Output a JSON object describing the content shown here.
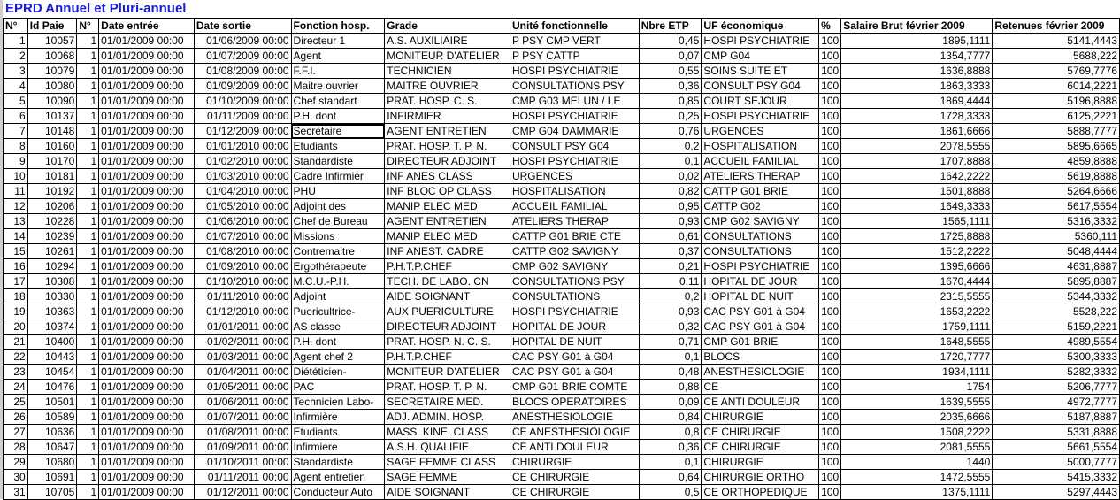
{
  "title": "EPRD Annuel et Pluri-annuel",
  "selected_cell": {
    "row": 7,
    "column": "Fonction hosp."
  },
  "columns": [
    "N°",
    "Id Paie",
    "N°",
    "Date entrée",
    "Date sortie",
    "Fonction hosp.",
    "Grade",
    "Unité fonctionnelle",
    "Nbre ETP",
    "UF économique",
    "%",
    "Salaire Brut février 2009",
    "Retenues février 2009"
  ],
  "rows": [
    [
      "1",
      "10057",
      "1",
      "01/01/2009 00:00",
      "01/06/2009 00:00",
      "Directeur 1",
      "A.S. AUXILIAIRE",
      "P PSY CMP VERT",
      "0,45",
      "HOSPI PSYCHIATRIE",
      "100",
      "1895,1111",
      "5141,4443"
    ],
    [
      "2",
      "10068",
      "1",
      "01/01/2009 00:00",
      "01/07/2009 00:00",
      "Agent",
      "MONITEUR D'ATELIER",
      "P PSY CATTP",
      "0,07",
      "CMP G04",
      "100",
      "1354,7777",
      "5688,222"
    ],
    [
      "3",
      "10079",
      "1",
      "01/01/2009 00:00",
      "01/08/2009 00:00",
      "F.F.I.",
      "TECHNICIEN",
      "HOSPI PSYCHIATRIE",
      "0,55",
      "SOINS SUITE ET",
      "100",
      "1636,8888",
      "5769,7776"
    ],
    [
      "4",
      "10080",
      "1",
      "01/01/2009 00:00",
      "01/09/2009 00:00",
      "Maitre ouvrier",
      "MAITRE OUVRIER",
      "CONSULTATIONS PSY",
      "0,36",
      "CONSULT PSY G04",
      "100",
      "1863,3333",
      "6014,2221"
    ],
    [
      "5",
      "10090",
      "1",
      "01/01/2009 00:00",
      "01/10/2009 00:00",
      "Chef standart",
      "PRAT. HOSP. C. S.",
      "CMP G03 MELUN / LE",
      "0,85",
      "COURT SEJOUR",
      "100",
      "1869,4444",
      "5196,8888"
    ],
    [
      "6",
      "10137",
      "1",
      "01/01/2009 00:00",
      "01/11/2009 00:00",
      "P.H. dont",
      "INFIRMIER",
      "HOSPI PSYCHIATRIE",
      "0,25",
      "HOSPI PSYCHIATRIE",
      "100",
      "1728,3333",
      "6125,2221"
    ],
    [
      "7",
      "10148",
      "1",
      "01/01/2009 00:00",
      "01/12/2009 00:00",
      "Secrétaire",
      "AGENT ENTRETIEN",
      "CMP G04 DAMMARIE",
      "0,76",
      "URGENCES",
      "100",
      "1861,6666",
      "5888,7777"
    ],
    [
      "8",
      "10160",
      "1",
      "01/01/2009 00:00",
      "01/01/2010 00:00",
      "Etudiants",
      "PRAT. HOSP. T. P. N.",
      "CONSULT PSY G04",
      "0,2",
      "HOSPITALISATION",
      "100",
      "2078,5555",
      "5895,6665"
    ],
    [
      "9",
      "10170",
      "1",
      "01/01/2009 00:00",
      "01/02/2010 00:00",
      "Standardiste",
      "DIRECTEUR ADJOINT",
      "HOSPI PSYCHIATRIE",
      "0,1",
      "ACCUEIL FAMILIAL",
      "100",
      "1707,8888",
      "4859,8888"
    ],
    [
      "10",
      "10181",
      "1",
      "01/01/2009 00:00",
      "01/03/2010 00:00",
      "Cadre Infirmier",
      "INF ANES CLASS",
      "URGENCES",
      "0,02",
      "ATELIERS THERAP",
      "100",
      "1642,2222",
      "5619,8888"
    ],
    [
      "11",
      "10192",
      "1",
      "01/01/2009 00:00",
      "01/04/2010 00:00",
      "PHU",
      "INF BLOC OP CLASS",
      "HOSPITALISATION",
      "0,82",
      "CATTP G01 BRIE",
      "100",
      "1501,8888",
      "5264,6666"
    ],
    [
      "12",
      "10206",
      "1",
      "01/01/2009 00:00",
      "01/05/2010 00:00",
      "Adjoint des",
      "MANIP ELEC MED",
      "ACCUEIL FAMILIAL",
      "0,95",
      "CATTP G02",
      "100",
      "1649,3333",
      "5617,5554"
    ],
    [
      "13",
      "10228",
      "1",
      "01/01/2009 00:00",
      "01/06/2010 00:00",
      "Chef de Bureau",
      "AGENT ENTRETIEN",
      "ATELIERS THERAP",
      "0,93",
      "CMP G02 SAVIGNY",
      "100",
      "1565,1111",
      "5316,3332"
    ],
    [
      "14",
      "10239",
      "1",
      "01/01/2009 00:00",
      "01/07/2010 00:00",
      "Missions",
      "MANIP ELEC MED",
      "CATTP G01 BRIE CTE",
      "0,61",
      "CONSULTATIONS",
      "100",
      "1725,8888",
      "5360,111"
    ],
    [
      "15",
      "10261",
      "1",
      "01/01/2009 00:00",
      "01/08/2010 00:00",
      "Contremaitre",
      "INF ANEST. CADRE",
      "CATTP G02 SAVIGNY",
      "0,37",
      "CONSULTATIONS",
      "100",
      "1512,2222",
      "5048,4444"
    ],
    [
      "16",
      "10294",
      "1",
      "01/01/2009 00:00",
      "01/09/2010 00:00",
      "Ergothérapeute",
      "P.H.T.P.CHEF",
      "CMP G02 SAVIGNY",
      "0,21",
      "HOSPI PSYCHIATRIE",
      "100",
      "1395,6666",
      "4631,8887"
    ],
    [
      "17",
      "10308",
      "1",
      "01/01/2009 00:00",
      "01/10/2010 00:00",
      "M.C.U.-P.H.",
      "TECH. DE LABO. CN",
      "CONSULTATIONS PSY",
      "0,11",
      "HOPITAL DE JOUR",
      "100",
      "1670,4444",
      "5895,8887"
    ],
    [
      "18",
      "10330",
      "1",
      "01/01/2009 00:00",
      "01/11/2010 00:00",
      "Adjoint",
      "AIDE SOIGNANT",
      "CONSULTATIONS",
      "0,2",
      "HOPITAL DE NUIT",
      "100",
      "2315,5555",
      "5344,3332"
    ],
    [
      "19",
      "10363",
      "1",
      "01/01/2009 00:00",
      "01/12/2010 00:00",
      "Puericultrice-",
      "AUX PUERICULTURE",
      "HOSPI PSYCHIATRIE",
      "0,93",
      "CAC PSY G01 à G04",
      "100",
      "1653,2222",
      "5528,222"
    ],
    [
      "20",
      "10374",
      "1",
      "01/01/2009 00:00",
      "01/01/2011 00:00",
      "AS classe",
      "DIRECTEUR ADJOINT",
      "HOPITAL DE JOUR",
      "0,32",
      "CAC PSY G01 à G04",
      "100",
      "1759,1111",
      "5159,2221"
    ],
    [
      "21",
      "10400",
      "1",
      "01/01/2009 00:00",
      "01/02/2011 00:00",
      "P.H. dont",
      "PRAT. HOSP. N. C. S.",
      "HOPITAL DE NUIT",
      "0,71",
      "CMP G01 BRIE",
      "100",
      "1648,5555",
      "4989,5554"
    ],
    [
      "22",
      "10443",
      "1",
      "01/01/2009 00:00",
      "01/03/2011 00:00",
      "Agent chef 2",
      "P.H.T.P.CHEF",
      "CAC PSY G01 à G04",
      "0,1",
      "BLOCS",
      "100",
      "1720,7777",
      "5300,3333"
    ],
    [
      "23",
      "10454",
      "1",
      "01/01/2009 00:00",
      "01/04/2011 00:00",
      "Diététicien-",
      "MONITEUR D'ATELIER",
      "CAC PSY G01 à G04",
      "0,48",
      "ANESTHESIOLOGIE",
      "100",
      "1934,1111",
      "5282,3332"
    ],
    [
      "24",
      "10476",
      "1",
      "01/01/2009 00:00",
      "01/05/2011 00:00",
      "PAC",
      "PRAT. HOSP. T. P. N.",
      "CMP G01 BRIE COMTE",
      "0,88",
      "CE",
      "100",
      "1754",
      "5206,7777"
    ],
    [
      "25",
      "10501",
      "1",
      "01/01/2009 00:00",
      "01/06/2011 00:00",
      "Technicien Labo-",
      "SECRETAIRE MED.",
      "BLOCS OPERATOIRES",
      "0,09",
      "CE ANTI DOULEUR",
      "100",
      "1639,5555",
      "4972,7777"
    ],
    [
      "26",
      "10589",
      "1",
      "01/01/2009 00:00",
      "01/07/2011 00:00",
      "Infirmière",
      "ADJ. ADMIN. HOSP.",
      "ANESTHESIOLOGIE",
      "0,84",
      "CHIRURGIE",
      "100",
      "2035,6666",
      "5187,8887"
    ],
    [
      "27",
      "10636",
      "1",
      "01/01/2009 00:00",
      "01/08/2011 00:00",
      "Etudiants",
      "MASS. KINE. CLASS",
      "CE ANESTHESIOLOGIE",
      "0,8",
      "CE CHIRURGIE",
      "100",
      "1508,2222",
      "5331,8888"
    ],
    [
      "28",
      "10647",
      "1",
      "01/01/2009 00:00",
      "01/09/2011 00:00",
      "Infirmiere",
      "A.S.H. QUALIFIE",
      "CE ANTI DOULEUR",
      "0,36",
      "CE CHIRURGIE",
      "100",
      "2081,5555",
      "5661,5554"
    ],
    [
      "29",
      "10680",
      "1",
      "01/01/2009 00:00",
      "01/10/2011 00:00",
      "Standardiste",
      "SAGE FEMME CLASS",
      "CHIRURGIE",
      "0,1",
      "CHIRURGIE",
      "100",
      "1440",
      "5000,7777"
    ],
    [
      "30",
      "10691",
      "1",
      "01/01/2009 00:00",
      "01/11/2011 00:00",
      "Agent entretien",
      "SAGE FEMME",
      "CE CHIRURGIE",
      "0,64",
      "CHIRURGIE ORTHO",
      "100",
      "1472,5555",
      "5415,3332"
    ],
    [
      "31",
      "10705",
      "1",
      "01/01/2009 00:00",
      "01/12/2011 00:00",
      "Conducteur Auto",
      "AIDE SOIGNANT",
      "CE CHIRURGIE",
      "0,5",
      "CE ORTHOPEDIQUE",
      "100",
      "1375,1111",
      "5297,4443"
    ]
  ]
}
